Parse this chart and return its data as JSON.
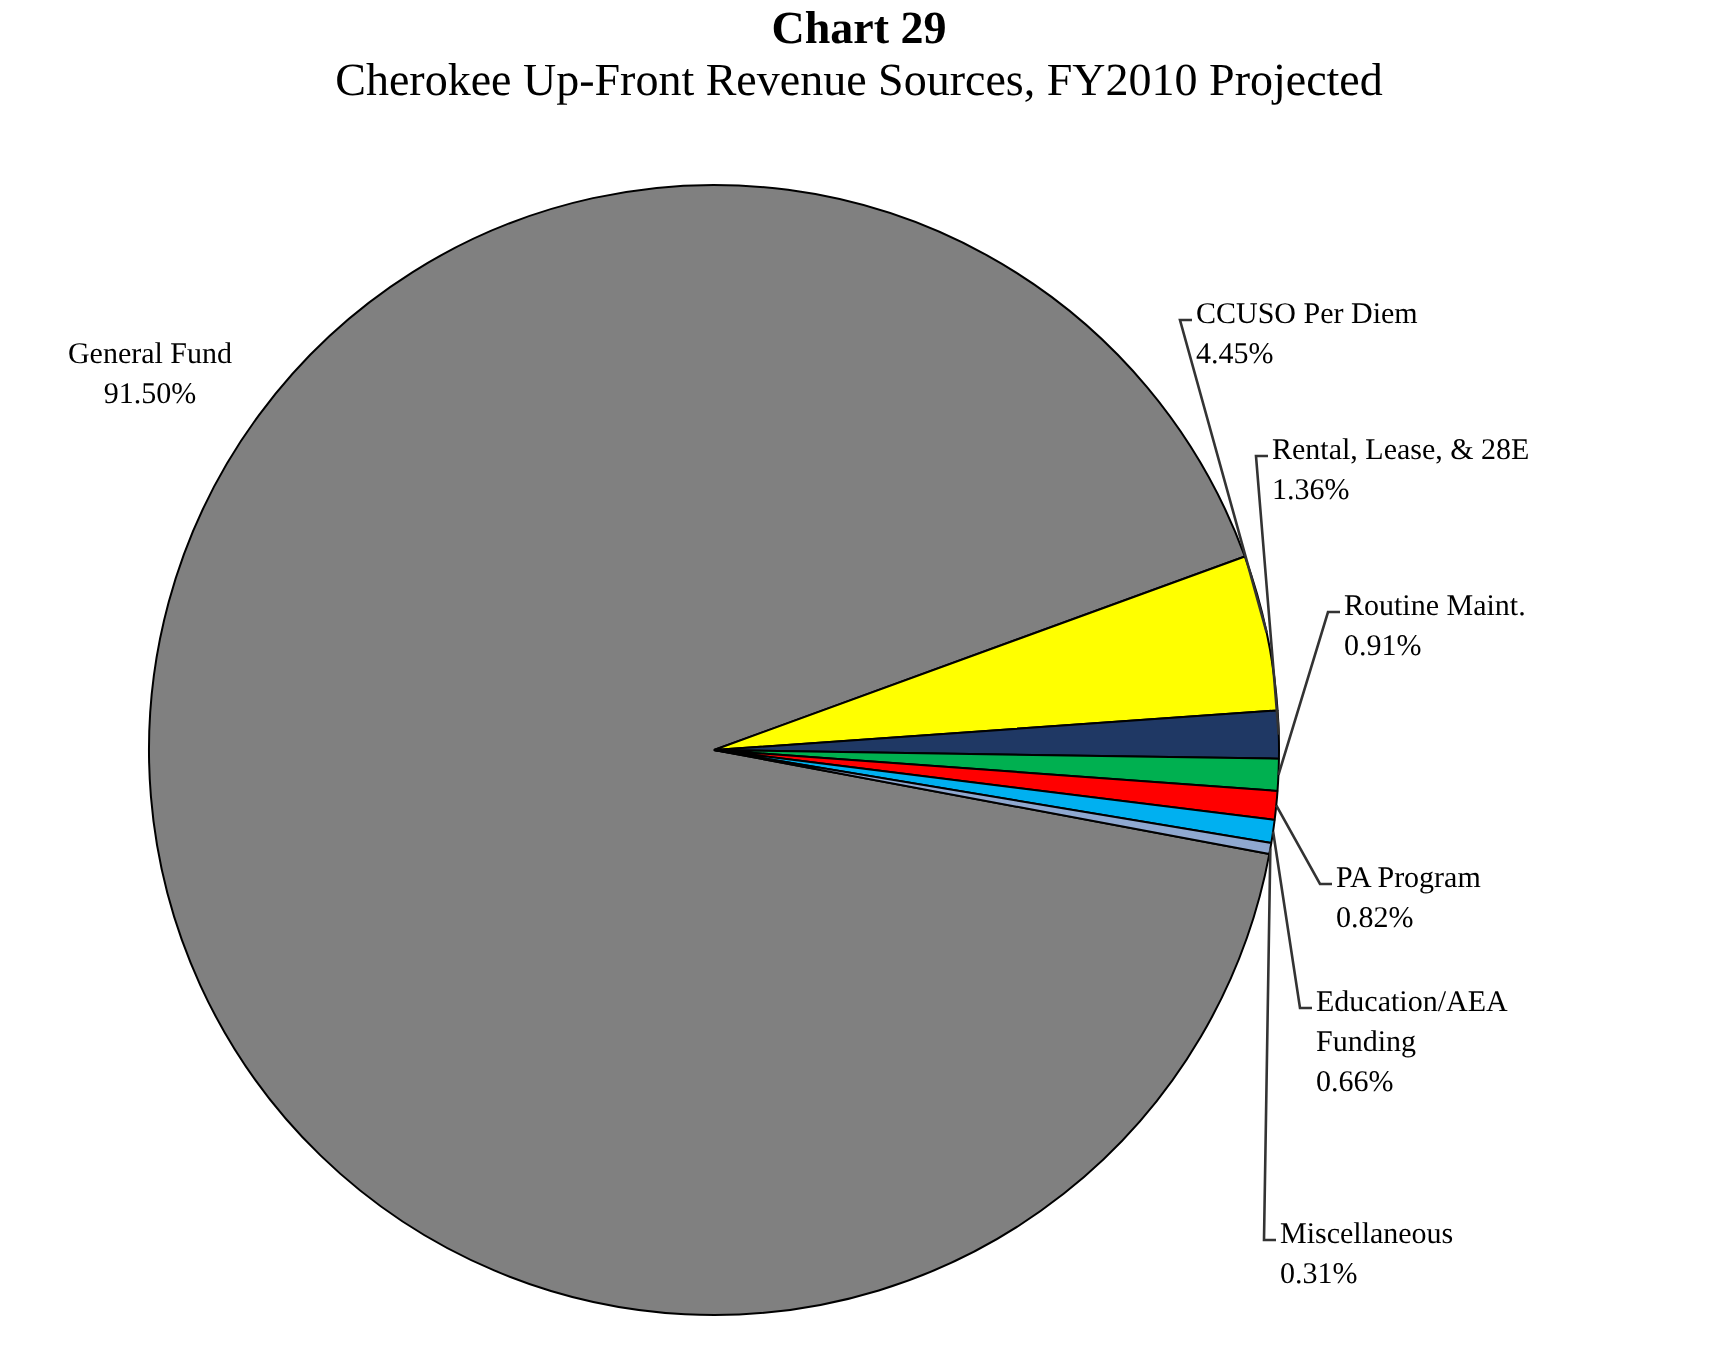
{
  "chart_data": {
    "type": "pie",
    "title": "Chart 29",
    "subtitle": "Cherokee Up-Front Revenue Sources, FY2010 Projected",
    "categories": [
      "General Fund",
      "CCUSO Per Diem",
      "Rental, Lease, & 28E",
      "Routine Maint.",
      "PA Program",
      "Education/AEA Funding",
      "Miscellaneous"
    ],
    "values": [
      91.5,
      4.45,
      1.36,
      0.91,
      0.82,
      0.66,
      0.31
    ],
    "value_labels": [
      "91.50%",
      "4.45%",
      "1.36%",
      "0.91%",
      "0.82%",
      "0.66%",
      "0.31%"
    ],
    "colors": [
      "#808080",
      "#ffff00",
      "#1f3864",
      "#00b050",
      "#ff0000",
      "#00b0f0",
      "#8fa8d0"
    ],
    "legend": false
  }
}
